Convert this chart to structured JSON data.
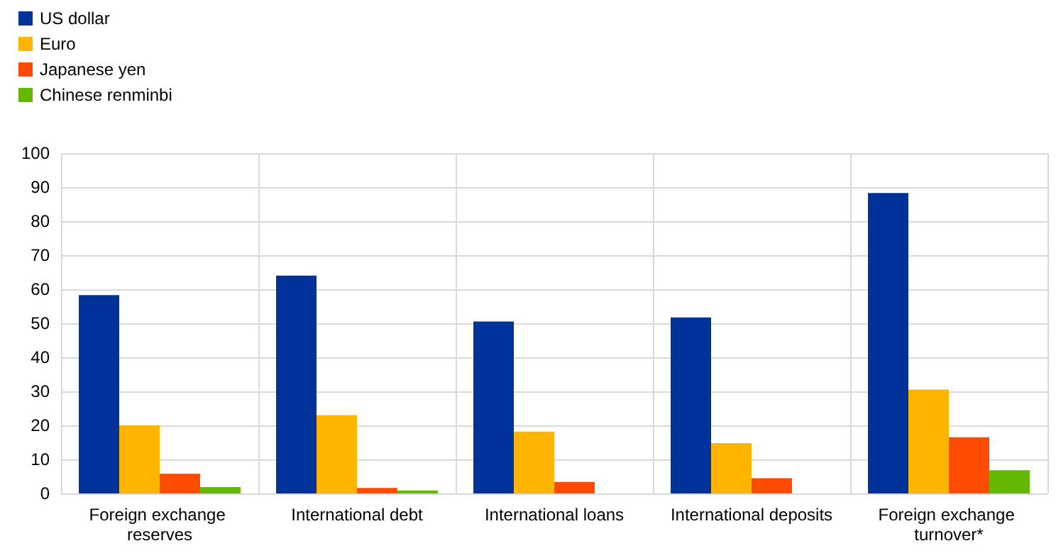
{
  "chart_data": {
    "type": "bar",
    "categories": [
      "Foreign exchange reserves",
      "International debt",
      "International loans",
      "International deposits",
      "Foreign exchange turnover*"
    ],
    "series": [
      {
        "name": "US dollar",
        "color": "#003299",
        "values": [
          58.3,
          64,
          50.5,
          51.7,
          88.3
        ]
      },
      {
        "name": "Euro",
        "color": "#ffb400",
        "values": [
          20,
          23,
          18.2,
          14.8,
          30.5
        ]
      },
      {
        "name": "Japanese yen",
        "color": "#ff4b00",
        "values": [
          5.8,
          1.6,
          3.4,
          4.5,
          16.5
        ]
      },
      {
        "name": "Chinese renminbi",
        "color": "#65b800",
        "values": [
          1.9,
          0.9,
          null,
          null,
          6.8
        ]
      }
    ],
    "ylim": [
      0,
      100
    ],
    "yticks": [
      0,
      10,
      20,
      30,
      40,
      50,
      60,
      70,
      80,
      90,
      100
    ],
    "grid": true,
    "legend": "top left"
  }
}
